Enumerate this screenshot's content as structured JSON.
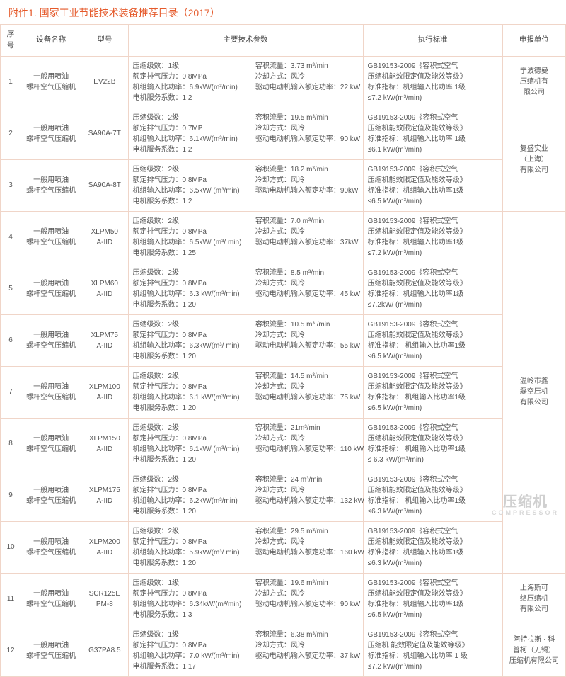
{
  "title": "附件1. 国家工业节能技术装备推荐目录（2017）",
  "headers": {
    "seq": "序号",
    "name": "设备名称",
    "model": "型号",
    "params": "主要技术参数",
    "standard": "执行标准",
    "unit": "申报单位"
  },
  "commonName": "一般用喷油\n螺杆空气压缩机",
  "rows": [
    {
      "seq": "1",
      "model": "EV22B",
      "p": [
        "压缩级数：1级",
        "额定排气压力：0.8MPa",
        "机组输入比功率：6.9kW/(m³/min)",
        "电机服务系数：1.2"
      ],
      "q": [
        "容积流量：3.73 m³/min",
        "冷却方式：风冷",
        "驱动电动机输入额定功率：22 kW"
      ],
      "s": [
        "GB19153-2009《容积式空气",
        "压缩机能效限定值及能效等级》",
        "标准指标：机组输入比功率 1级",
        "≤7.2 kW/(m³/min)"
      ],
      "unit": "宁波德曼\n压缩机有\n限公司",
      "unitspan": 1
    },
    {
      "seq": "2",
      "model": "SA90A-7T",
      "p": [
        "压缩级数：2级",
        "额定排气压力：0.7MP",
        "机组输入比功率：6.1kW/(m³/min)",
        "电机服务系数：1.2"
      ],
      "q": [
        "容积流量：19.5 m³/min",
        "冷却方式：风冷",
        "驱动电动机输入额定功率：90 kW"
      ],
      "s": [
        "GB19153-2009《容积式空气",
        "压缩机能效限定值及能效等级》",
        "标准指标：机组输入比功率 1级",
        "≤6.1 kW/(m³/min)"
      ],
      "unit": "复盛实业\n（上海）\n有限公司",
      "unitspan": 2
    },
    {
      "seq": "3",
      "model": "SA90A-8T",
      "p": [
        "压缩级数：2级",
        "额定排气压力：0.8MPa",
        "机组输入比功率：6.5kW/ (m³/min)",
        "电机服务系数：1.2"
      ],
      "q": [
        "容积流量：18.2 m³/min",
        "冷却方式：风冷",
        "驱动电动机输入额定功率：90kW"
      ],
      "s": [
        "GB19153-2009《容积式空气",
        "压缩机能效限定值及能效等级》",
        "标准指标：机组输入比功率1级",
        "≤6.5 kW/(m³/min)"
      ]
    },
    {
      "seq": "4",
      "model": "XLPM50\nA-IID",
      "p": [
        "压缩级数：2级",
        "额定排气压力：0.8MPa",
        "机组输入比功率：6.5kW/ (m³/ min)",
        "电机服务系数：1.25"
      ],
      "q": [
        "容积流量：7.0 m³/min",
        "冷却方式：风冷",
        "驱动电动机输入额定功率：37kW"
      ],
      "s": [
        "GB19153-2009《容积式空气",
        "压缩机能效限定值及能效等级》",
        "标准指标：机组输入比功率1级",
        "≤7.2 kW/(m³/min)"
      ],
      "unit": "温岭市鑫\n磊空压机\n有限公司",
      "unitspan": 7
    },
    {
      "seq": "5",
      "model": "XLPM60\nA-IID",
      "p": [
        "压缩级数：2级",
        "额定排气压力：0.8MPa",
        "机组输入比功率：6.3 kW/(m³/min)",
        "电机服务系数：1.20"
      ],
      "q": [
        "容积流量：8.5 m³/min",
        "冷却方式：风冷",
        "驱动电动机输入额定功率：45 kW"
      ],
      "s": [
        "GB19153-2009《容积式空气",
        "压缩机能效限定值及能效等级》",
        "标准指标：机组输入比功率1级",
        "≤7.2kW/ (m³/min)"
      ]
    },
    {
      "seq": "6",
      "model": "XLPM75\nA-IID",
      "p": [
        "压缩级数：2级",
        "额定排气压力：0.8MPa",
        "机组输入比功率：6.3kW/(m³/ min)",
        "电机服务系数：1.20"
      ],
      "q": [
        "容积流量：10.5 m³ /min",
        "冷却方式：风冷",
        "驱动电动机输入额定功率：55 kW"
      ],
      "s": [
        "GB19153-2009《容积式空气",
        "压缩机能效限定值及能效等级》",
        "标准指标： 机组输入比功率1级",
        "≤6.5 kW/(m³/min)"
      ]
    },
    {
      "seq": "7",
      "model": "XLPM100\nA-IID",
      "p": [
        "压缩级数：2级",
        "额定排气压力：0.8MPa",
        "机组输入比功率：6.1 kW/(m³/min)",
        "电机服务系数：1.20"
      ],
      "q": [
        "容积流量：14.5 m³/min",
        "冷却方式：风冷",
        "驱动电动机输入额定功率：75 kW"
      ],
      "s": [
        "GB19153-2009《容积式空气",
        "压缩机能效限定值及能效等级》",
        "标准指标： 机组输入比功率1级",
        "≤6.5 kW/(m³/min)"
      ]
    },
    {
      "seq": "8",
      "model": "XLPM150\nA-IID",
      "p": [
        "压缩级数：2级",
        "额定排气压力：0.8MPa",
        "机组输入比功率：6.1kW/ (m³/min)",
        "电机服务系数：1.20"
      ],
      "q": [
        "容积流量：21m³/min",
        "冷却方式：风冷",
        "驱动电动机输入额定功率：110 kW"
      ],
      "s": [
        "GB19153-2009《容积式空气",
        "压缩机能效限定值及能效等级》",
        "标准指标： 机组输入比功率1级",
        "≤ 6.3 kW/(m³/min)"
      ]
    },
    {
      "seq": "9",
      "model": "XLPM175\nA-IID",
      "p": [
        "压缩级数：2级",
        "额定排气压力：0.8MPa",
        "机组输入比功率：6.2kW/(m³/min)",
        "电机服务系数：1.20"
      ],
      "q": [
        "容积流量：24 m³/min",
        "冷却方式：风冷",
        "驱动电动机输入额定功率：132 kW"
      ],
      "s": [
        "GB19153-2009《容积式空气",
        "压缩机能效限定值及能效等级》",
        "标准指标： 机组输入比功率1级",
        "≤6.3 kW/(m³/min)"
      ]
    },
    {
      "seq": "10",
      "model": "XLPM200\nA-IID",
      "p": [
        "压缩级数：2级",
        "额定排气压力：0.8MPa",
        "机组输入比功率：5.9kW/(m³/ min)",
        "电机服务系数：1.20"
      ],
      "q": [
        "容积流量：29.5 m³/min",
        "冷却方式：风冷",
        "驱动电动机输入额定功率：160 kW"
      ],
      "s": [
        "GB19153-2009《容积式空气",
        "压缩机能效限定值及能效等级》",
        "标准指标：机组输入比功率1级",
        "≤6.3 kW/(m³/min)"
      ]
    },
    {
      "seq": "11",
      "model": "SCR125E\nPM-8",
      "p": [
        "压缩级数：1级",
        "额定排气压力：0.8MPa",
        "机组输入比功率：6.34kW/(m³/min)",
        "电机服务系数：1.3"
      ],
      "q": [
        "容积流量：19.6 m³/min",
        "冷却方式：风冷",
        "驱动电动机输入额定功率：90 kW"
      ],
      "s": [
        "GB19153-2009《容积式空气",
        "压缩机能效限定值及能效等级》",
        "标准指标：机组输入比功率1级",
        "≤6.5 kW/(m³/min)"
      ],
      "unit": "上海斯可\n络压缩机\n有限公司",
      "unitspan": 1
    },
    {
      "seq": "12",
      "model": "G37PA8.5",
      "p": [
        "压缩级数：1级",
        "额定排气压力：0.8MPa",
        "机组输入比功率：7.0 kW/(m³/min)",
        "电机服务系数：1.17"
      ],
      "q": [
        "容积流量：6.38 m³/min",
        "冷却方式：风冷",
        "驱动电动机输入额定功率：37 kW"
      ],
      "s": [
        "GB19153-2009《容积式空气",
        "压缩机 能效限定值及能效等级》",
        "标准指标：机组输入比功率 1 级",
        "≤7.2 kW/(m³/min)"
      ],
      "unit": "阿特拉斯 · 科\n普柯（无锡）\n压缩机有限公司",
      "unitspan": 1
    }
  ],
  "watermark": {
    "main": "压缩机",
    "sub": "COMPRESSOR"
  }
}
